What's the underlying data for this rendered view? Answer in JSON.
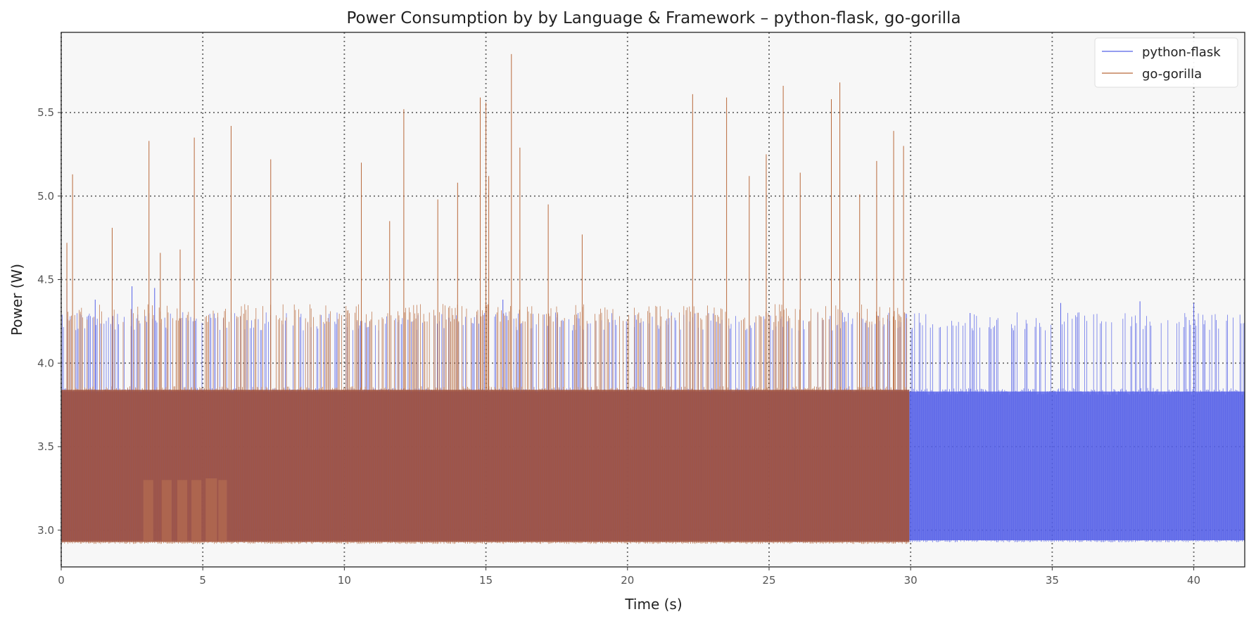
{
  "chart_data": {
    "type": "line",
    "title": "Power Consumption by by Language & Framework – python-flask, go-gorilla",
    "xlabel": "Time (s)",
    "ylabel": "Power (W)",
    "xlim": [
      0,
      41.8
    ],
    "ylim": [
      2.78,
      5.98
    ],
    "xticks": [
      "0",
      "5",
      "10",
      "15",
      "20",
      "25",
      "30",
      "35",
      "40"
    ],
    "yticks": [
      "3.0",
      "3.5",
      "4.0",
      "4.5",
      "5.0",
      "5.5"
    ],
    "grid": true,
    "legend_position": "top-right",
    "series": [
      {
        "name": "python-flask",
        "color": "#5560e8",
        "x_range": [
          0,
          41.8
        ],
        "baseline_min": 2.94,
        "dense_band_top": 3.83,
        "typical_peak": 4.25,
        "max": 4.56,
        "peaks": [
          {
            "x": 0.2,
            "y": 4.48
          },
          {
            "x": 1.2,
            "y": 4.38
          },
          {
            "x": 2.5,
            "y": 4.46
          },
          {
            "x": 3.3,
            "y": 4.45
          },
          {
            "x": 15.6,
            "y": 4.38
          },
          {
            "x": 32.1,
            "y": 4.3
          },
          {
            "x": 35.3,
            "y": 4.36
          },
          {
            "x": 38.1,
            "y": 4.37
          },
          {
            "x": 40.0,
            "y": 4.36
          },
          {
            "x": 41.8,
            "y": 4.56
          }
        ],
        "dips": [
          {
            "x": 8.7,
            "y": 3.5
          },
          {
            "x": 22.6,
            "y": 3.23
          },
          {
            "x": 23.5,
            "y": 3.55
          },
          {
            "x": 25.9,
            "y": 3.29
          }
        ]
      },
      {
        "name": "go-gorilla",
        "color": "#b9693b",
        "x_range": [
          0,
          29.95
        ],
        "baseline_min": 2.93,
        "dense_band_top": 3.84,
        "typical_peak": 4.3,
        "max": 5.85,
        "peaks": [
          {
            "x": 0.2,
            "y": 4.72
          },
          {
            "x": 0.4,
            "y": 5.13
          },
          {
            "x": 1.8,
            "y": 4.81
          },
          {
            "x": 3.1,
            "y": 5.33
          },
          {
            "x": 3.5,
            "y": 4.66
          },
          {
            "x": 4.2,
            "y": 4.68
          },
          {
            "x": 4.7,
            "y": 5.35
          },
          {
            "x": 6.0,
            "y": 5.42
          },
          {
            "x": 7.4,
            "y": 5.22
          },
          {
            "x": 10.6,
            "y": 5.2
          },
          {
            "x": 11.6,
            "y": 4.85
          },
          {
            "x": 12.1,
            "y": 5.52
          },
          {
            "x": 13.3,
            "y": 4.98
          },
          {
            "x": 14.0,
            "y": 5.08
          },
          {
            "x": 14.8,
            "y": 5.59
          },
          {
            "x": 15.0,
            "y": 5.56
          },
          {
            "x": 15.1,
            "y": 5.12
          },
          {
            "x": 15.9,
            "y": 5.85
          },
          {
            "x": 16.2,
            "y": 5.29
          },
          {
            "x": 17.2,
            "y": 4.95
          },
          {
            "x": 18.4,
            "y": 4.77
          },
          {
            "x": 22.3,
            "y": 5.61
          },
          {
            "x": 23.5,
            "y": 5.59
          },
          {
            "x": 24.3,
            "y": 5.12
          },
          {
            "x": 24.9,
            "y": 5.25
          },
          {
            "x": 25.5,
            "y": 5.66
          },
          {
            "x": 26.1,
            "y": 5.14
          },
          {
            "x": 27.2,
            "y": 5.58
          },
          {
            "x": 27.5,
            "y": 5.68
          },
          {
            "x": 28.2,
            "y": 5.01
          },
          {
            "x": 28.8,
            "y": 5.21
          },
          {
            "x": 29.4,
            "y": 5.39
          },
          {
            "x": 29.75,
            "y": 5.3
          }
        ],
        "bursts": [
          {
            "x_start": 2.9,
            "x_end": 3.25,
            "level": 3.3
          },
          {
            "x_start": 3.55,
            "x_end": 3.9,
            "level": 3.3
          },
          {
            "x_start": 4.1,
            "x_end": 4.45,
            "level": 3.3
          },
          {
            "x_start": 4.6,
            "x_end": 4.95,
            "level": 3.3
          },
          {
            "x_start": 5.1,
            "x_end": 5.5,
            "level": 3.31
          },
          {
            "x_start": 5.55,
            "x_end": 5.85,
            "level": 3.3
          }
        ]
      }
    ]
  }
}
